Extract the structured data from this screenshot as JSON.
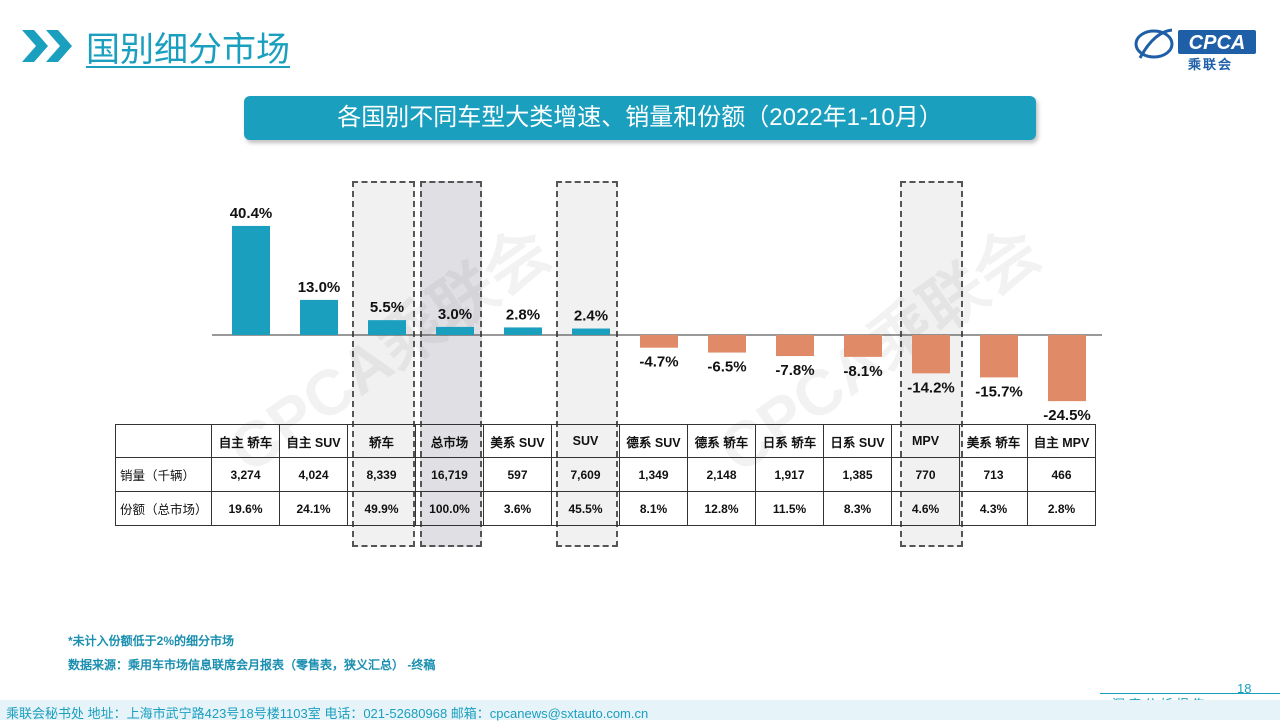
{
  "header": {
    "title": "国别细分市场",
    "logo_label": "乘联会",
    "logo_brand": "CPCA"
  },
  "banner": {
    "text": "各国别不同车型大类增速、销量和份额（2022年1-10月）"
  },
  "watermark": "CPCA乘联会",
  "colors": {
    "positive": "#1a9fbf",
    "negative": "#e08a68",
    "accent": "#1a9fbf"
  },
  "chart_data": {
    "type": "bar",
    "categories": [
      "自主 轿车",
      "自主 SUV",
      "轿车",
      "总市场",
      "美系 SUV",
      "SUV",
      "德系 SUV",
      "德系 轿车",
      "日系 轿车",
      "日系 SUV",
      "MPV",
      "美系 轿车",
      "自主 MPV"
    ],
    "values": [
      40.4,
      13.0,
      5.5,
      3.0,
      2.8,
      2.4,
      -4.7,
      -6.5,
      -7.8,
      -8.1,
      -14.2,
      -15.7,
      -24.5
    ],
    "value_labels": [
      "40.4%",
      "13.0%",
      "5.5%",
      "3.0%",
      "2.8%",
      "2.4%",
      "-4.7%",
      "-6.5%",
      "-7.8%",
      "-8.1%",
      "-14.2%",
      "-15.7%",
      "-24.5%"
    ],
    "highlighted": [
      "轿车",
      "总市场",
      "SUV",
      "MPV"
    ],
    "ylim": [
      -26,
      42
    ]
  },
  "table": {
    "rows": [
      {
        "label": "销量（千辆）",
        "values": [
          "3,274",
          "4,024",
          "8,339",
          "16,719",
          "597",
          "7,609",
          "1,349",
          "2,148",
          "1,917",
          "1,385",
          "770",
          "713",
          "466"
        ]
      },
      {
        "label": "份额（总市场）",
        "values": [
          "19.6%",
          "24.1%",
          "49.9%",
          "100.0%",
          "3.6%",
          "45.5%",
          "8.1%",
          "12.8%",
          "11.5%",
          "8.3%",
          "4.6%",
          "4.3%",
          "2.8%"
        ]
      }
    ]
  },
  "notes": {
    "note1": "*未计入份额低于2%的细分市场",
    "note2": "数据来源：乘用车市场信息联席会月报表（零售表，狭义汇总） -终稿"
  },
  "footer": {
    "page_number": "18",
    "report_label": "深度分析报告",
    "text": "乘联会秘书处   地址：上海市武宁路423号18号楼1103室  电话：021-52680968   邮箱：cpcanews@sxtauto.com.cn"
  }
}
